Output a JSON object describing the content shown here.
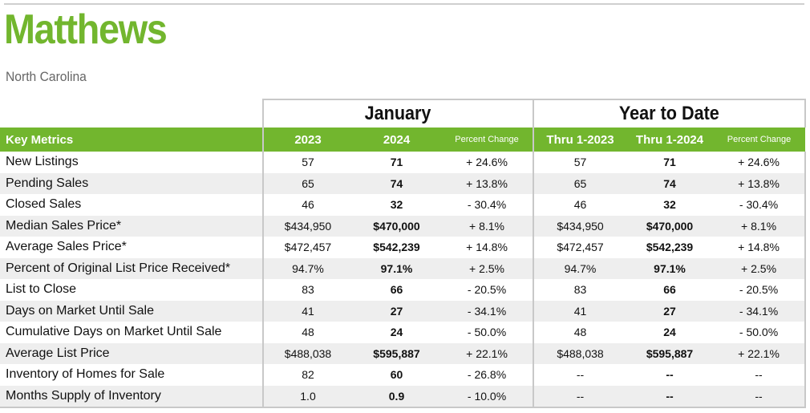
{
  "header": {
    "title": "Matthews",
    "subtitle": "North Carolina"
  },
  "groups": {
    "month": "January",
    "ytd": "Year to Date"
  },
  "columns": {
    "key": "Key Metrics",
    "m1": "2023",
    "m2": "2024",
    "mpc": "Percent Change",
    "y1": "Thru 1-2023",
    "y2": "Thru 1-2024",
    "ypc": "Percent Change"
  },
  "rows": [
    {
      "label": "New Listings",
      "m1": "57",
      "m2": "71",
      "mpc": "+ 24.6%",
      "y1": "57",
      "y2": "71",
      "ypc": "+ 24.6%"
    },
    {
      "label": "Pending Sales",
      "m1": "65",
      "m2": "74",
      "mpc": "+ 13.8%",
      "y1": "65",
      "y2": "74",
      "ypc": "+ 13.8%"
    },
    {
      "label": "Closed Sales",
      "m1": "46",
      "m2": "32",
      "mpc": "- 30.4%",
      "y1": "46",
      "y2": "32",
      "ypc": "- 30.4%"
    },
    {
      "label": "Median Sales Price*",
      "m1": "$434,950",
      "m2": "$470,000",
      "mpc": "+ 8.1%",
      "y1": "$434,950",
      "y2": "$470,000",
      "ypc": "+ 8.1%"
    },
    {
      "label": "Average Sales Price*",
      "m1": "$472,457",
      "m2": "$542,239",
      "mpc": "+ 14.8%",
      "y1": "$472,457",
      "y2": "$542,239",
      "ypc": "+ 14.8%"
    },
    {
      "label": "Percent of Original List Price Received*",
      "m1": "94.7%",
      "m2": "97.1%",
      "mpc": "+ 2.5%",
      "y1": "94.7%",
      "y2": "97.1%",
      "ypc": "+ 2.5%"
    },
    {
      "label": "List to Close",
      "m1": "83",
      "m2": "66",
      "mpc": "- 20.5%",
      "y1": "83",
      "y2": "66",
      "ypc": "- 20.5%"
    },
    {
      "label": "Days on Market Until Sale",
      "m1": "41",
      "m2": "27",
      "mpc": "- 34.1%",
      "y1": "41",
      "y2": "27",
      "ypc": "- 34.1%"
    },
    {
      "label": "Cumulative Days on Market Until Sale",
      "m1": "48",
      "m2": "24",
      "mpc": "- 50.0%",
      "y1": "48",
      "y2": "24",
      "ypc": "- 50.0%"
    },
    {
      "label": "Average List Price",
      "m1": "$488,038",
      "m2": "$595,887",
      "mpc": "+ 22.1%",
      "y1": "$488,038",
      "y2": "$595,887",
      "ypc": "+ 22.1%"
    },
    {
      "label": "Inventory of Homes for Sale",
      "m1": "82",
      "m2": "60",
      "mpc": "- 26.8%",
      "y1": "--",
      "y2": "--",
      "ypc": "--"
    },
    {
      "label": "Months Supply of Inventory",
      "m1": "1.0",
      "m2": "0.9",
      "mpc": "- 10.0%",
      "y1": "--",
      "y2": "--",
      "ypc": "--"
    }
  ],
  "colors": {
    "accent": "#72b62e",
    "stripe": "#eeeeee",
    "border": "#c8c8c8"
  }
}
